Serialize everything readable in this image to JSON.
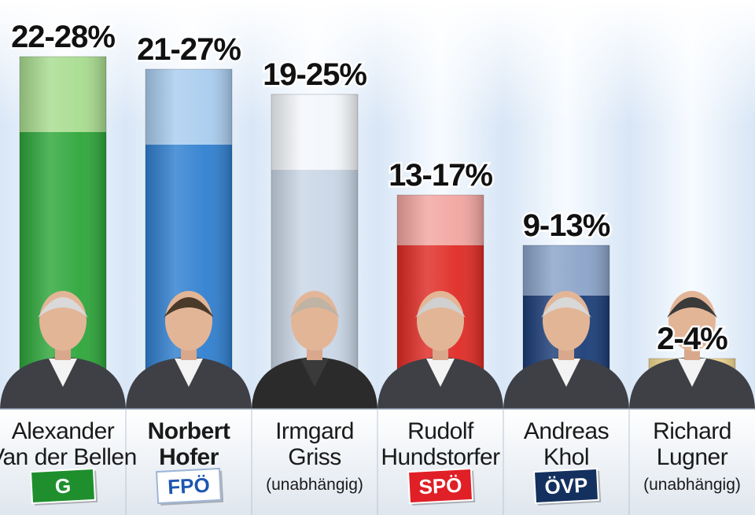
{
  "chart_data": {
    "type": "bar",
    "categories": [
      "Alexander Van der Bellen",
      "Norbert Hofer",
      "Irmgard Griss",
      "Rudolf Hundstorfer",
      "Andreas Khol",
      "Richard Lugner"
    ],
    "range_labels": [
      "22-28%",
      "21-27%",
      "19-25%",
      "13-17%",
      "9-13%",
      "2-4%"
    ],
    "ranges": [
      [
        22,
        28
      ],
      [
        21,
        27
      ],
      [
        19,
        25
      ],
      [
        13,
        17
      ],
      [
        9,
        13
      ],
      [
        2,
        4
      ]
    ],
    "ylim": [
      0,
      30
    ],
    "grid": false,
    "candidates": [
      {
        "name_lines": [
          "Alexander",
          "Van der Bellen"
        ],
        "note": "",
        "party_logo": "G",
        "color": "#2da63a",
        "light": "#a8dc8f",
        "bold": false
      },
      {
        "name_lines": [
          "Norbert",
          "Hofer"
        ],
        "note": "",
        "party_logo": "FPÖ",
        "color": "#2f7fd0",
        "light": "#a9cdef",
        "bold": true
      },
      {
        "name_lines": [
          "Irmgard",
          "Griss"
        ],
        "note": "(unabhängig)",
        "party_logo": "",
        "color": "#c9d6e6",
        "light": "#f4f7fb",
        "bold": false
      },
      {
        "name_lines": [
          "Rudolf",
          "Hundstorfer"
        ],
        "note": "",
        "party_logo": "SPÖ",
        "color": "#e02a24",
        "light": "#f2a5a0",
        "bold": false
      },
      {
        "name_lines": [
          "Andreas",
          "Khol"
        ],
        "note": "",
        "party_logo": "ÖVP",
        "color": "#1b3d78",
        "light": "#8aa3c9",
        "bold": false
      },
      {
        "name_lines": [
          "Richard",
          "Lugner"
        ],
        "note": "(unabhängig)",
        "party_logo": "",
        "color": "#e9a51f",
        "light": "#f6dc93",
        "bold": false
      }
    ],
    "logo_colors": {
      "G": "#1f8f2e",
      "FPÖ": "#ffffff",
      "SPÖ": "#e01f26",
      "ÖVP": "#14305f"
    }
  }
}
